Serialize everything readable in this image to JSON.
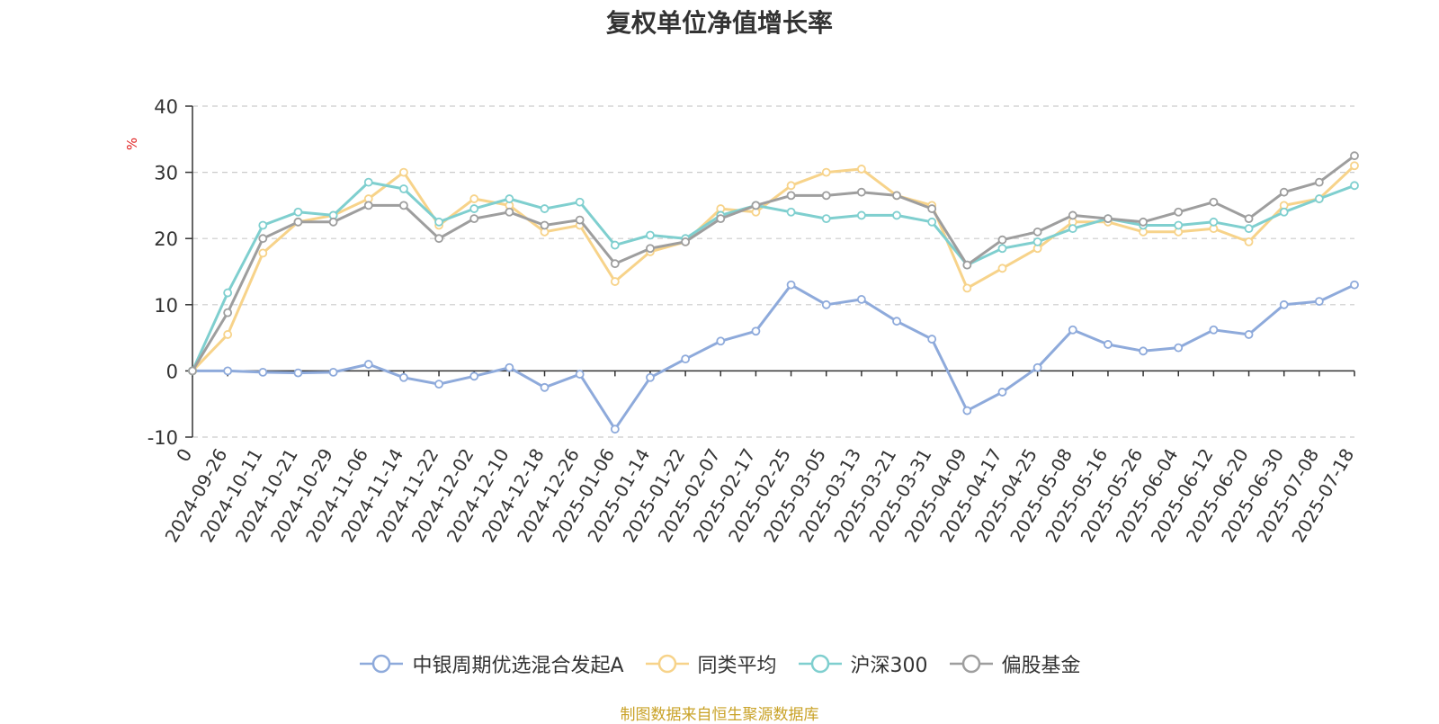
{
  "page_title": "复权单位净值增长率",
  "footer_source": "制图数据来自恒生聚源数据库",
  "chart_data": {
    "type": "line",
    "title": "复权单位净值增长率",
    "ylabel": "%",
    "ylim": [
      -10,
      40
    ],
    "yticks": [
      -10,
      0,
      10,
      20,
      30,
      40
    ],
    "grid": true,
    "legend_position": "bottom",
    "tick_labels": [
      "0",
      "2024-09-26",
      "2024-10-11",
      "2024-10-21",
      "2024-10-29",
      "2024-11-06",
      "2024-11-14",
      "2024-11-22",
      "2024-12-02",
      "2024-12-10",
      "2024-12-18",
      "2024-12-26",
      "2025-01-06",
      "2025-01-14",
      "2025-01-22",
      "2025-02-07",
      "2025-02-17",
      "2025-02-25",
      "2025-03-05",
      "2025-03-13",
      "2025-03-21",
      "2025-03-31",
      "2025-04-09",
      "2025-04-17",
      "2025-04-25",
      "2025-05-08",
      "2025-05-16",
      "2025-05-26",
      "2025-06-04",
      "2025-06-12",
      "2025-06-20",
      "2025-06-30",
      "2025-07-08",
      "2025-07-18"
    ],
    "series": [
      {
        "name": "中银周期优选混合发起A",
        "color": "#8eaadb",
        "values": [
          0,
          0,
          -0.2,
          -0.3,
          -0.2,
          1.0,
          -1.0,
          -2.0,
          -0.8,
          0.5,
          -2.5,
          -0.5,
          -8.8,
          -1.0,
          1.8,
          4.5,
          6.0,
          13.0,
          10.0,
          10.8,
          7.5,
          4.8,
          -6.0,
          -3.2,
          0.5,
          6.2,
          4.0,
          3.0,
          3.5,
          6.2,
          5.5,
          10.0,
          10.5,
          13.0
        ]
      },
      {
        "name": "同类平均",
        "color": "#f7d38a",
        "values": [
          0,
          5.5,
          17.8,
          22.5,
          23.5,
          26.0,
          30.0,
          22.0,
          26.0,
          25.0,
          21.0,
          22.0,
          13.5,
          18.0,
          19.5,
          24.5,
          24.0,
          28.0,
          30.0,
          30.5,
          26.5,
          25.0,
          12.5,
          15.5,
          18.5,
          22.5,
          22.5,
          21.0,
          21.0,
          21.5,
          19.5,
          25.0,
          26.0,
          31.0
        ]
      },
      {
        "name": "沪深300",
        "color": "#7fcfcf",
        "values": [
          0,
          11.8,
          22.0,
          24.0,
          23.5,
          28.5,
          27.5,
          22.5,
          24.5,
          26.0,
          24.5,
          25.5,
          19.0,
          20.5,
          20.0,
          23.5,
          25.0,
          24.0,
          23.0,
          23.5,
          23.5,
          22.5,
          16.0,
          18.5,
          19.5,
          21.5,
          23.0,
          22.0,
          22.0,
          22.5,
          21.5,
          24.0,
          26.0,
          28.0
        ]
      },
      {
        "name": "偏股基金",
        "color": "#9e9e9e",
        "values": [
          0,
          8.8,
          20.0,
          22.5,
          22.5,
          25.0,
          25.0,
          20.0,
          23.0,
          24.0,
          22.0,
          22.8,
          16.2,
          18.5,
          19.5,
          23.0,
          25.0,
          26.5,
          26.5,
          27.0,
          26.5,
          24.5,
          16.0,
          19.8,
          21.0,
          23.5,
          23.0,
          22.5,
          24.0,
          25.5,
          23.0,
          27.0,
          28.5,
          32.5
        ]
      }
    ]
  }
}
